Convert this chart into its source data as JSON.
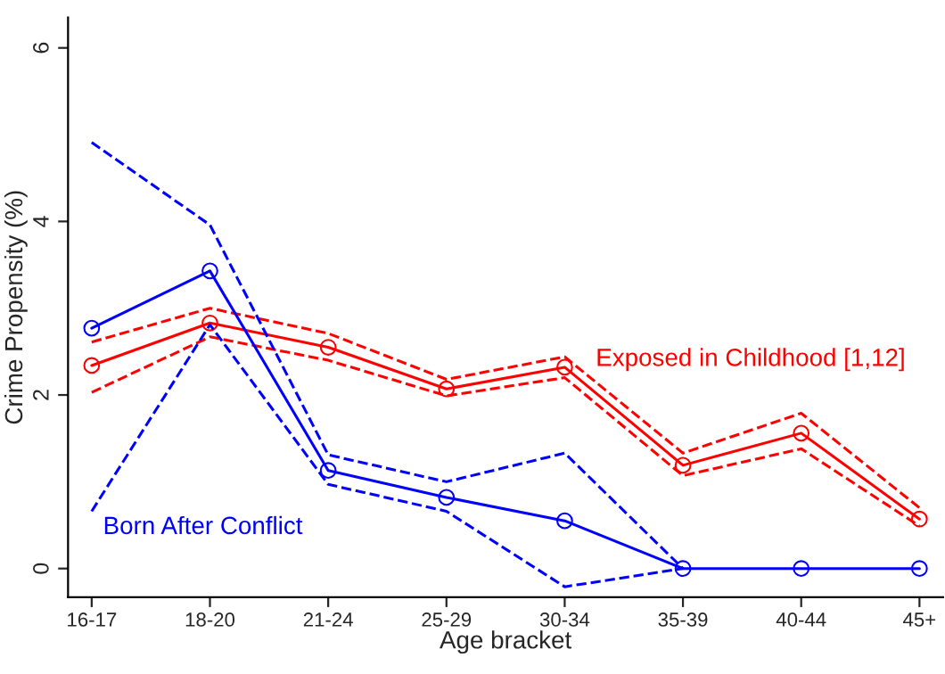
{
  "chart_data": {
    "type": "line",
    "xlabel": "Age bracket",
    "ylabel": "Crime Propensity (%)",
    "categories": [
      "16-17",
      "18-20",
      "21-24",
      "25-29",
      "30-34",
      "35-39",
      "40-44",
      "45+"
    ],
    "series": [
      {
        "name": "Exposed in Childhood [1,12]",
        "color": "#ff0000",
        "values": [
          2.34,
          2.83,
          2.55,
          2.07,
          2.32,
          1.19,
          1.56,
          0.57
        ]
      },
      {
        "color": "#ff0000",
        "values": [
          2.03,
          2.67,
          2.4,
          1.99,
          2.2,
          1.07,
          1.38,
          0.49
        ],
        "line_style": "dashed",
        "marker": "none"
      },
      {
        "color": "#ff0000",
        "values": [
          2.61,
          3.0,
          2.71,
          2.18,
          2.44,
          1.33,
          1.79,
          0.7
        ],
        "line_style": "dashed",
        "marker": "none"
      },
      {
        "name": "Born After Conflict",
        "color": "#0000ff",
        "values": [
          2.77,
          3.43,
          1.13,
          0.82,
          0.55,
          0,
          0,
          0
        ]
      },
      {
        "color": "#0000ff",
        "values": [
          0.66,
          2.81,
          0.97,
          0.66,
          -0.21,
          0,
          null,
          null
        ],
        "line_style": "dashed",
        "marker": "none"
      },
      {
        "color": "#0000ff",
        "values": [
          4.91,
          3.96,
          1.31,
          1.0,
          1.33,
          0,
          null,
          null
        ],
        "line_style": "dashed",
        "marker": "none"
      }
    ],
    "ylim": [
      -0.33,
      6.35
    ],
    "yticks": [
      0,
      2,
      4,
      6
    ],
    "grid": false,
    "legend": false,
    "marker": "circle",
    "line_style": "solid"
  }
}
